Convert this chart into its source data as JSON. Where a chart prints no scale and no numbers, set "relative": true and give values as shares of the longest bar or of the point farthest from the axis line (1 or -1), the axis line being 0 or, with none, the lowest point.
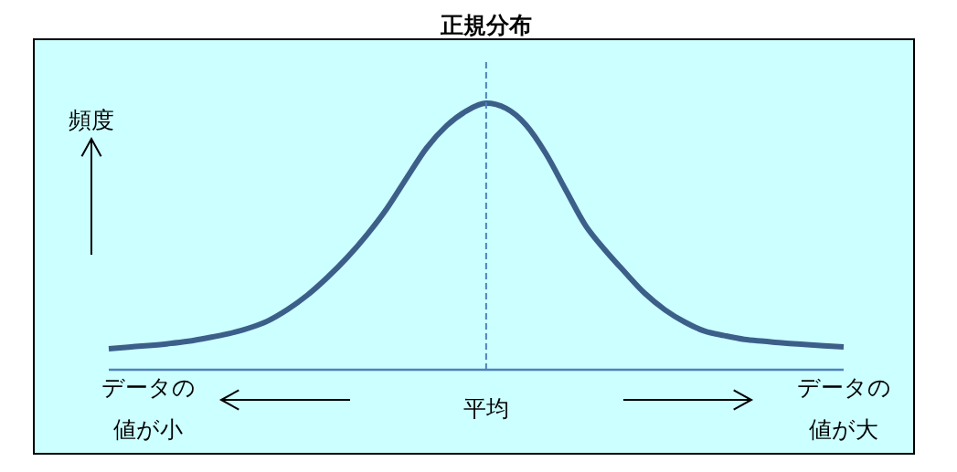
{
  "chart_data": {
    "type": "line",
    "title": "正規分布",
    "ylabel": "頻度",
    "relative": true,
    "categories": [
      null,
      null,
      "データの値が小",
      null,
      null,
      null,
      null,
      null,
      null,
      null,
      null,
      null,
      null,
      null,
      null,
      null,
      null,
      null,
      null,
      "平均",
      null,
      null,
      null,
      null,
      null,
      null,
      null,
      null,
      null,
      null,
      null,
      null,
      null,
      null,
      null,
      null,
      null,
      "データの値が大"
    ],
    "values": [
      0.079,
      0.085,
      0.091,
      0.098,
      0.107,
      0.12,
      0.135,
      0.155,
      0.183,
      0.226,
      0.28,
      0.346,
      0.421,
      0.507,
      0.605,
      0.72,
      0.832,
      0.915,
      0.971,
      1,
      0.981,
      0.919,
      0.812,
      0.676,
      0.542,
      0.448,
      0.365,
      0.286,
      0.225,
      0.179,
      0.145,
      0.128,
      0.114,
      0.107,
      0.1,
      0.095,
      0.09,
      0.086
    ],
    "color": "#3c5f8a",
    "marker": "none",
    "line_style": "solid",
    "ref_lines": [
      {
        "axis": "x",
        "value": "平均",
        "color": "#4f81bd",
        "line_style": "dashed"
      }
    ]
  }
}
